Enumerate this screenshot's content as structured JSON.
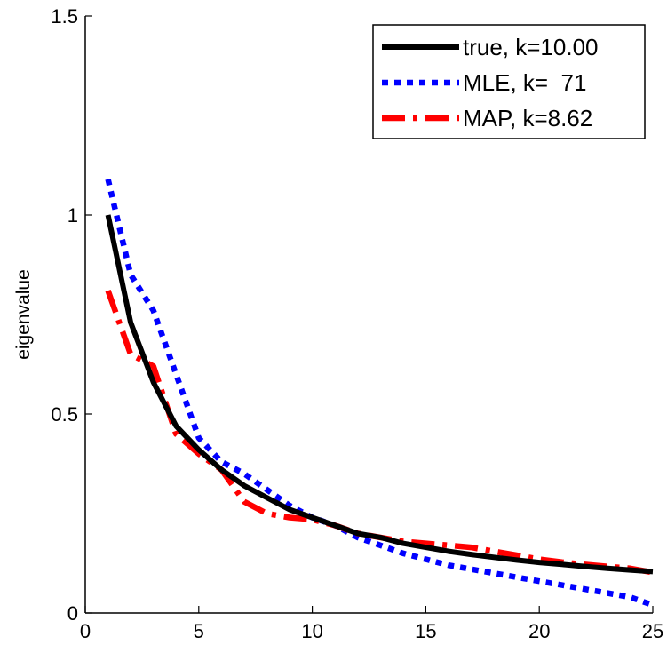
{
  "chart_data": {
    "type": "line",
    "ylabel": "eigenvalue",
    "xlabel": "",
    "xlim": [
      0,
      25
    ],
    "ylim": [
      0,
      1.5
    ],
    "xticks": [
      0,
      5,
      10,
      15,
      20,
      25
    ],
    "yticks": [
      0,
      0.5,
      1,
      1.5
    ],
    "ytick_labels": [
      "0",
      "0.5",
      "1",
      "1.5"
    ],
    "grid": false,
    "legend_position": "top-right",
    "x": [
      1,
      2,
      3,
      4,
      5,
      6,
      7,
      8,
      9,
      10,
      11,
      12,
      13,
      14,
      15,
      16,
      17,
      18,
      19,
      20,
      21,
      22,
      23,
      24,
      25
    ],
    "series": [
      {
        "name": "true, k=10.00",
        "color": "#000000",
        "style": "solid",
        "values": [
          1.0,
          0.73,
          0.58,
          0.47,
          0.41,
          0.36,
          0.32,
          0.29,
          0.26,
          0.24,
          0.22,
          0.2,
          0.19,
          0.175,
          0.165,
          0.155,
          0.147,
          0.14,
          0.133,
          0.127,
          0.122,
          0.117,
          0.112,
          0.108,
          0.104
        ]
      },
      {
        "name": "MLE, k=  71",
        "color": "#0000ff",
        "style": "dotted",
        "values": [
          1.09,
          0.85,
          0.76,
          0.6,
          0.44,
          0.38,
          0.35,
          0.31,
          0.27,
          0.24,
          0.22,
          0.19,
          0.17,
          0.15,
          0.135,
          0.12,
          0.11,
          0.1,
          0.09,
          0.08,
          0.07,
          0.06,
          0.05,
          0.04,
          0.02
        ]
      },
      {
        "name": "MAP, k=8.62",
        "color": "#ff0000",
        "style": "dashdot",
        "values": [
          0.81,
          0.65,
          0.62,
          0.45,
          0.4,
          0.36,
          0.28,
          0.25,
          0.24,
          0.235,
          0.22,
          0.2,
          0.19,
          0.18,
          0.175,
          0.17,
          0.165,
          0.155,
          0.145,
          0.135,
          0.128,
          0.122,
          0.117,
          0.112,
          0.102
        ]
      }
    ]
  }
}
